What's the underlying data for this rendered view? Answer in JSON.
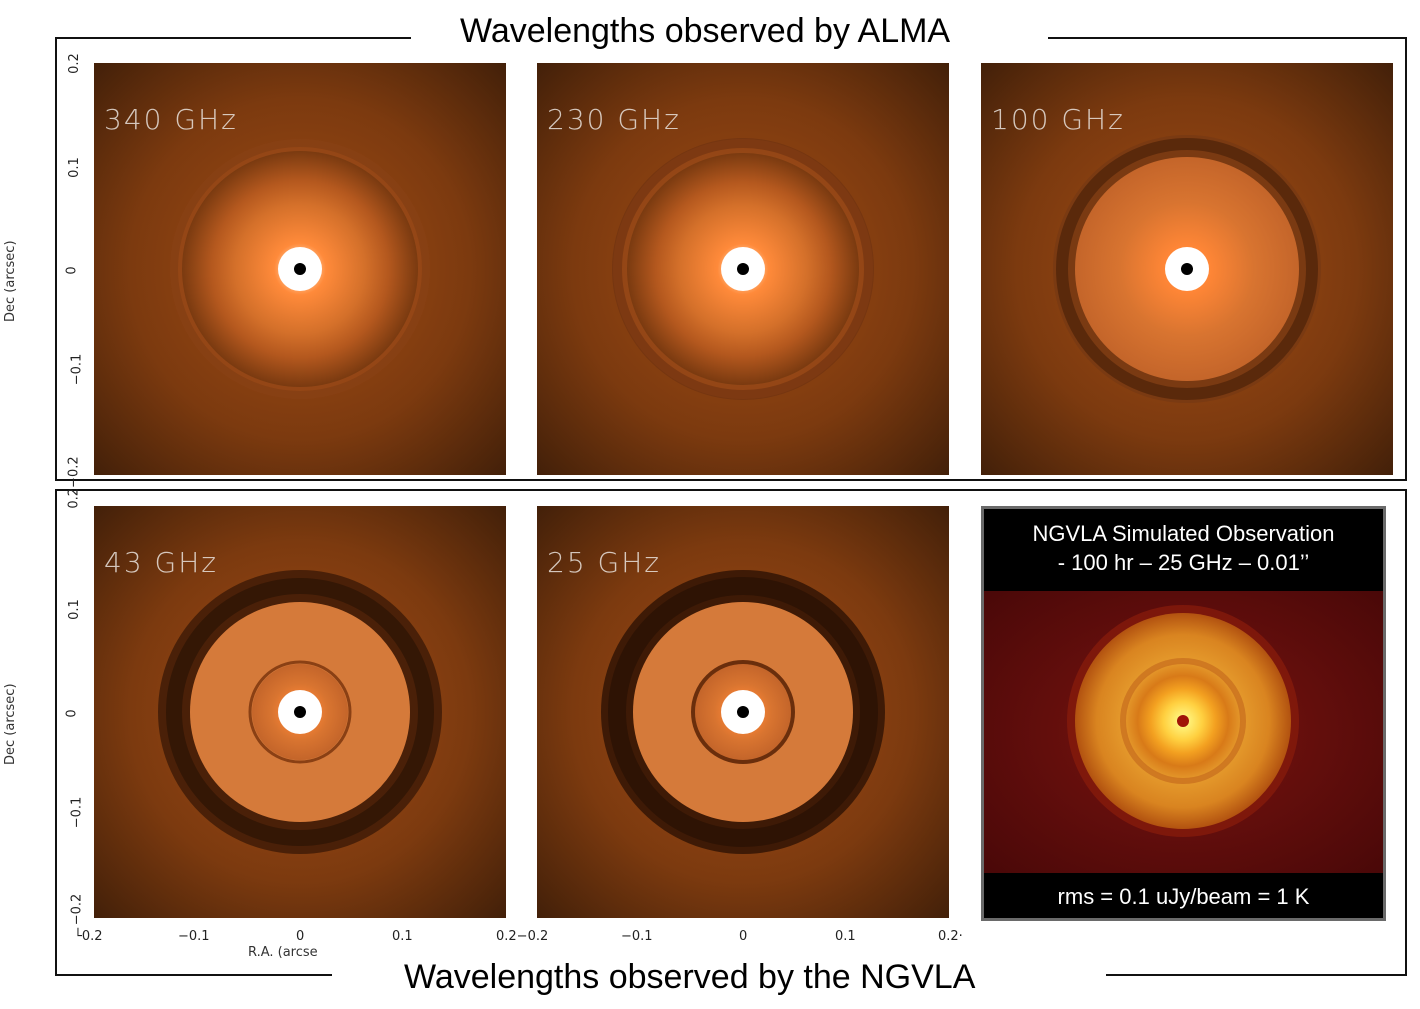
{
  "top_title": "Wavelengths observed by ALMA",
  "bottom_title": "Wavelengths observed by the NGVLA",
  "panels_top": [
    {
      "freq": "340 GHz"
    },
    {
      "freq": "230 GHz"
    },
    {
      "freq": "100 GHz"
    }
  ],
  "panels_bottom": [
    {
      "freq": "43 GHz"
    },
    {
      "freq": "25 GHz"
    }
  ],
  "simulation": {
    "line1": "NGVLA Simulated Observation",
    "line2": "- 100 hr – 25 GHz – 0.01’’",
    "footer": "rms = 0.1 uJy/beam = 1 K"
  },
  "axes": {
    "ylabel": "Dec (arcsec)",
    "xlabel": "R.A. (arcse",
    "yticks": [
      "0.2",
      "0.1",
      "0",
      "−0.1",
      "−0.2"
    ],
    "xticks": [
      "−0.2",
      "−0.1",
      "0",
      "0.1",
      "0.2"
    ],
    "x_edge_left": "└0.2",
    "x_joint": "0.2−0.2",
    "x_right_cut": "0.2·",
    "y_joint": "0.2−0.2"
  },
  "colors": {
    "disk_bright": "#ff8a3a",
    "disk_mid": "#c9651f",
    "background": "#3a1c08"
  }
}
